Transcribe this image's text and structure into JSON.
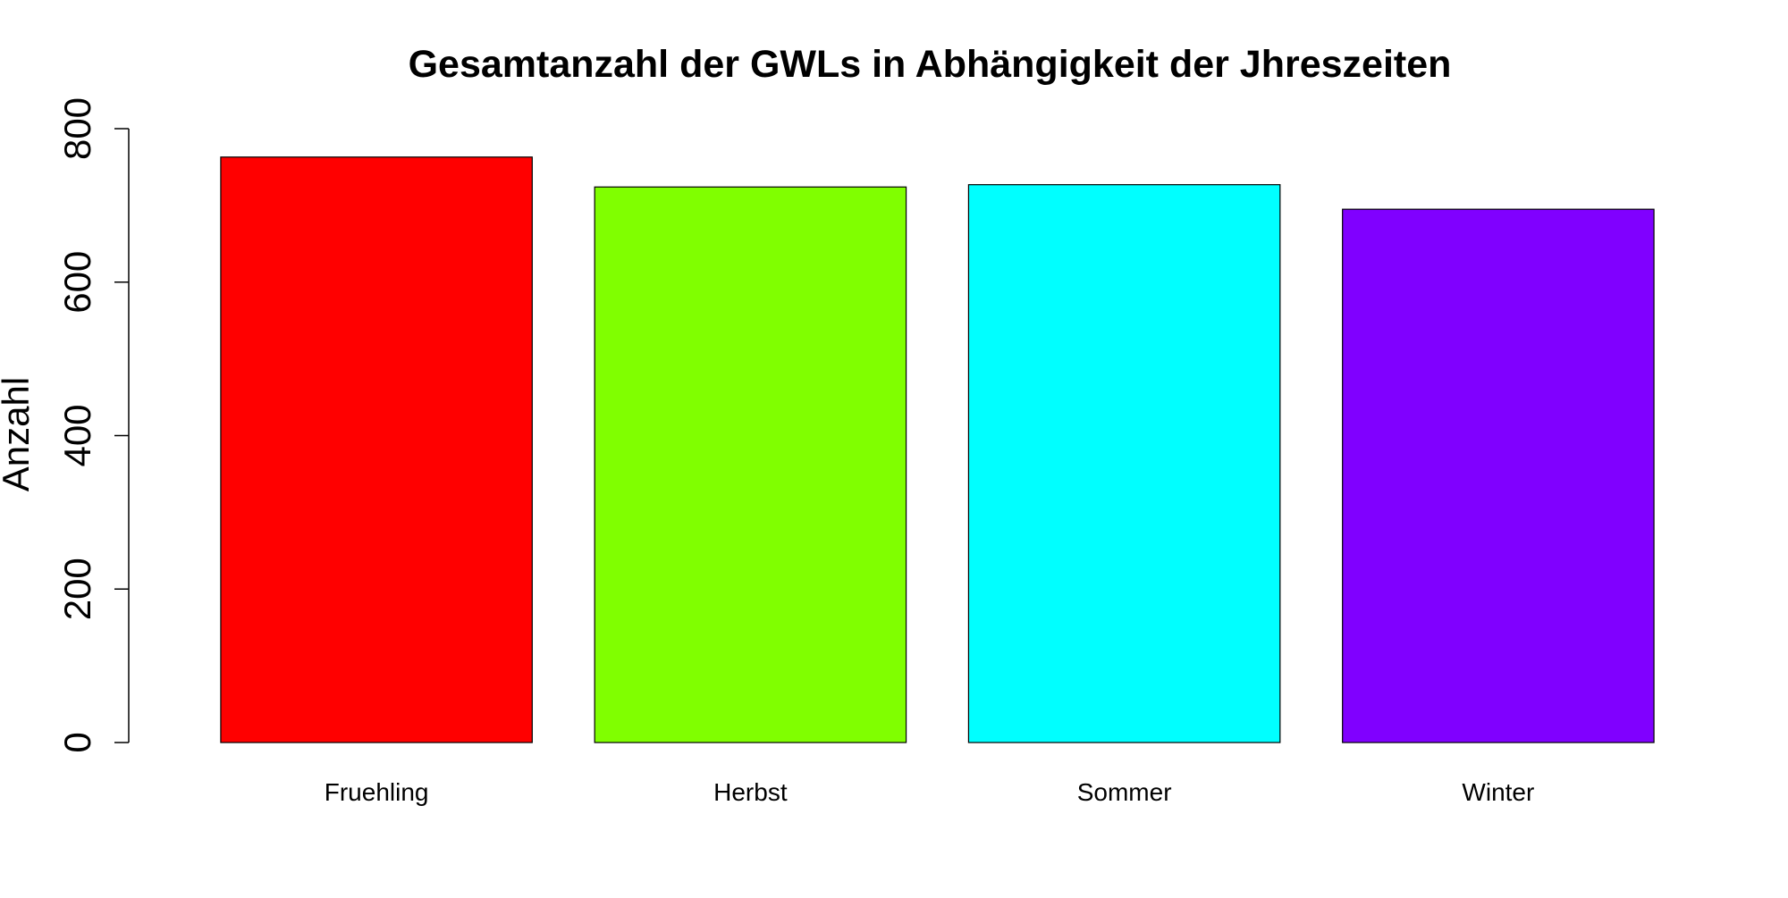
{
  "chart_data": {
    "type": "bar",
    "title": "Gesamtanzahl der GWLs in Abhängigkeit der Jhreszeiten",
    "xlabel": "",
    "ylabel": "Anzahl",
    "categories": [
      "Fruehling",
      "Herbst",
      "Sommer",
      "Winter"
    ],
    "values": [
      763,
      724,
      727,
      695
    ],
    "colors": [
      "#ff0000",
      "#80ff00",
      "#00ffff",
      "#8000ff"
    ],
    "ylim": [
      0,
      800
    ],
    "yticks": [
      0,
      200,
      400,
      600,
      800
    ],
    "grid": false,
    "legend": "none"
  }
}
